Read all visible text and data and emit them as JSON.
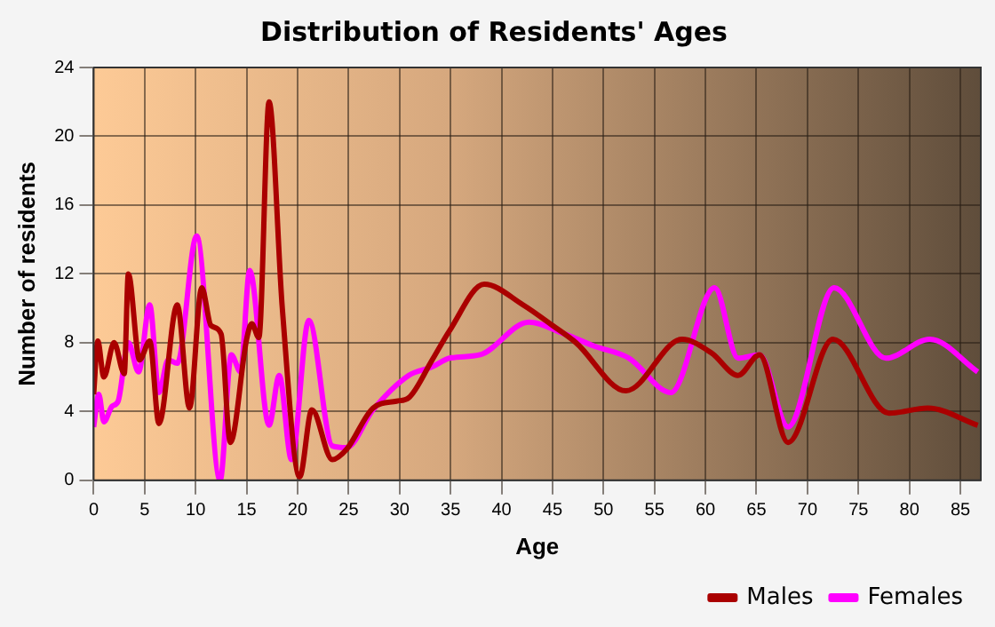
{
  "chart_data": {
    "type": "line",
    "title": "Distribution of Residents' Ages",
    "xlabel": "Age",
    "ylabel": "Number of residents",
    "xlim": [
      0,
      87
    ],
    "xticks": [
      0,
      5,
      10,
      15,
      20,
      25,
      30,
      35,
      40,
      45,
      50,
      55,
      60,
      65,
      70,
      75,
      80,
      85
    ],
    "ylim": [
      0,
      24
    ],
    "yticks": [
      0,
      4,
      8,
      12,
      16,
      20,
      24
    ],
    "grid": true,
    "legend": "bottom right",
    "marker": "none",
    "line_style": "solid",
    "series": [
      {
        "name": "Males",
        "color": "#aa0000",
        "x": [
          0,
          0.4,
          1,
          2,
          3,
          3.4,
          4.5,
          5.5,
          6.4,
          8.2,
          9.4,
          10.6,
          11.5,
          12.5,
          13.4,
          15,
          15.5,
          16.2,
          17.2,
          18.5,
          20.2,
          21.4,
          23.4,
          24.8,
          27.4,
          29.7,
          30.9,
          33.2,
          34.9,
          38.3,
          42.1,
          45,
          47.3,
          52.2,
          57.7,
          60.6,
          63.2,
          65.3,
          68.1,
          72.5,
          78,
          81.8,
          86.7
        ],
        "values": [
          5,
          8.1,
          6,
          8,
          6.2,
          12,
          7,
          8.1,
          3.3,
          10.2,
          4.2,
          11.2,
          9,
          8.5,
          2.2,
          8.2,
          9.1,
          8.3,
          22,
          10,
          0.2,
          4.1,
          1.2,
          1.8,
          4.2,
          4.6,
          4.8,
          7,
          8.7,
          11.4,
          10.2,
          9,
          8,
          5.2,
          8.2,
          7.4,
          6.1,
          7.3,
          2.2,
          8.2,
          3.9,
          4.2,
          3.2
        ]
      },
      {
        "name": "Females",
        "color": "#ff00ff",
        "x": [
          0,
          0.5,
          1,
          1.8,
          2.4,
          3.4,
          4.4,
          5.5,
          6.4,
          7.3,
          8.2,
          10.1,
          12.4,
          13.5,
          14.4,
          15.3,
          17.2,
          18.2,
          19.4,
          21.1,
          23.4,
          24.8,
          27.4,
          30.9,
          33.2,
          34.9,
          37.9,
          42.7,
          46.2,
          49.1,
          52.5,
          56.6,
          60.9,
          63.2,
          65.3,
          68.1,
          72.6,
          77.7,
          82,
          86.7
        ],
        "values": [
          3.1,
          5,
          3.4,
          4.3,
          4.6,
          8,
          6.3,
          10.2,
          5.1,
          7,
          6.8,
          14.2,
          0,
          7.3,
          6.3,
          12.2,
          3.2,
          6.1,
          1.2,
          9.3,
          2,
          1.9,
          4.1,
          6.1,
          6.6,
          7.1,
          7.3,
          9.2,
          8.5,
          7.8,
          7.1,
          5.1,
          11.2,
          7.1,
          7.3,
          3.1,
          11.2,
          7.1,
          8.2,
          6.3
        ]
      }
    ]
  }
}
